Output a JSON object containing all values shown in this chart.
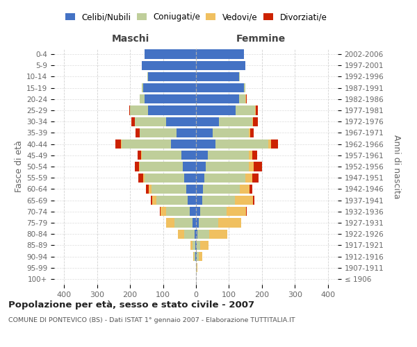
{
  "age_groups": [
    "100+",
    "95-99",
    "90-94",
    "85-89",
    "80-84",
    "75-79",
    "70-74",
    "65-69",
    "60-64",
    "55-59",
    "50-54",
    "45-49",
    "40-44",
    "35-39",
    "30-34",
    "25-29",
    "20-24",
    "15-19",
    "10-14",
    "5-9",
    "0-4"
  ],
  "birth_years": [
    "≤ 1906",
    "1907-1911",
    "1912-1916",
    "1917-1921",
    "1922-1926",
    "1927-1931",
    "1932-1936",
    "1937-1941",
    "1942-1946",
    "1947-1951",
    "1952-1956",
    "1957-1961",
    "1962-1966",
    "1967-1971",
    "1972-1976",
    "1977-1981",
    "1982-1986",
    "1987-1991",
    "1992-1996",
    "1997-2001",
    "2002-2006"
  ],
  "maschi": {
    "celibi": [
      0,
      1,
      3,
      3,
      5,
      10,
      20,
      25,
      30,
      35,
      40,
      45,
      75,
      60,
      90,
      145,
      155,
      160,
      145,
      165,
      155
    ],
    "coniugati": [
      0,
      0,
      3,
      8,
      30,
      55,
      70,
      95,
      105,
      120,
      130,
      120,
      150,
      110,
      95,
      55,
      15,
      5,
      2,
      0,
      0
    ],
    "vedovi": [
      0,
      0,
      2,
      5,
      20,
      25,
      18,
      12,
      8,
      5,
      3,
      2,
      2,
      1,
      1,
      1,
      0,
      0,
      0,
      0,
      0
    ],
    "divorziati": [
      0,
      0,
      0,
      0,
      0,
      0,
      2,
      5,
      8,
      15,
      12,
      10,
      18,
      12,
      10,
      2,
      0,
      0,
      0,
      0,
      0
    ]
  },
  "femmine": {
    "nubili": [
      0,
      1,
      3,
      2,
      5,
      8,
      12,
      18,
      22,
      25,
      30,
      35,
      60,
      50,
      70,
      120,
      130,
      145,
      130,
      150,
      145
    ],
    "coniugate": [
      0,
      1,
      5,
      10,
      35,
      60,
      80,
      100,
      110,
      125,
      130,
      125,
      160,
      110,
      100,
      60,
      20,
      5,
      2,
      0,
      0
    ],
    "vedove": [
      0,
      2,
      10,
      25,
      55,
      70,
      60,
      55,
      30,
      20,
      15,
      10,
      8,
      5,
      3,
      2,
      2,
      0,
      0,
      0,
      0
    ],
    "divorziate": [
      0,
      0,
      0,
      0,
      0,
      0,
      2,
      5,
      8,
      20,
      25,
      15,
      20,
      10,
      15,
      5,
      2,
      0,
      0,
      0,
      0
    ]
  },
  "colors": {
    "celibi_nubili": "#4472C4",
    "coniugati": "#BFCE9A",
    "vedovi": "#F0C060",
    "divorziati": "#CC2200"
  },
  "xlim": 430,
  "title": "Popolazione per età, sesso e stato civile - 2007",
  "subtitle": "COMUNE DI PONTEVICO (BS) - Dati ISTAT 1° gennaio 2007 - Elaborazione TUTTITALIA.IT",
  "ylabel_left": "Fasce di età",
  "ylabel_right": "Anni di nascita",
  "xlabel_maschi": "Maschi",
  "xlabel_femmine": "Femmine",
  "bg_color": "#FFFFFF",
  "grid_color": "#CCCCCC"
}
